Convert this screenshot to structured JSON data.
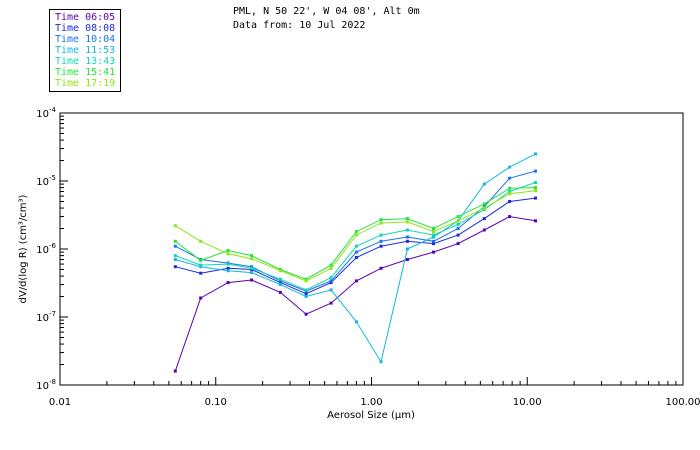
{
  "header": {
    "location": "PML, N 50 22', W 04 08', Alt 0m",
    "date": "Data from: 10 Jul 2022"
  },
  "legend": [
    {
      "label": "Time 06:05",
      "color": "#5a00b4"
    },
    {
      "label": "Time 08:08",
      "color": "#1a2ae0"
    },
    {
      "label": "Time 10:04",
      "color": "#1a74e8"
    },
    {
      "label": "Time 11:53",
      "color": "#10b8e0"
    },
    {
      "label": "Time 13:43",
      "color": "#10d8b0"
    },
    {
      "label": "Time 15:41",
      "color": "#22e63a"
    },
    {
      "label": "Time 17:19",
      "color": "#8ee614"
    }
  ],
  "chart_data": {
    "type": "line",
    "xscale": "log",
    "yscale": "log",
    "xlabel": "Aerosol Size (µm)",
    "ylabel": "dV/d(log R) (cm³/cm³)",
    "xlim": [
      0.01,
      100
    ],
    "ylim": [
      1e-08,
      0.0001
    ],
    "x_tick_labels": [
      "0.01",
      "0.10",
      "1.00",
      "10.00",
      "100.00"
    ],
    "y_tick_labels": [
      {
        "mant": "10",
        "exp": "-4"
      },
      {
        "mant": "10",
        "exp": "-5"
      },
      {
        "mant": "10",
        "exp": "-6"
      },
      {
        "mant": "10",
        "exp": "-7"
      },
      {
        "mant": "10",
        "exp": "-8"
      }
    ],
    "x": [
      0.055,
      0.08,
      0.12,
      0.17,
      0.26,
      0.38,
      0.55,
      0.8,
      1.15,
      1.7,
      2.5,
      3.6,
      5.3,
      7.7,
      11.3
    ],
    "series": [
      {
        "name": "06:05",
        "color": "#5a00b4",
        "values": [
          1.6e-08,
          1.9e-07,
          3.2e-07,
          3.5e-07,
          2.3e-07,
          1.1e-07,
          1.6e-07,
          3.4e-07,
          5.2e-07,
          7e-07,
          9e-07,
          1.2e-06,
          1.9e-06,
          3e-06,
          2.6e-06
        ]
      },
      {
        "name": "08:08",
        "color": "#1a2ae0",
        "values": [
          5.5e-07,
          4.4e-07,
          5.2e-07,
          5e-07,
          3.2e-07,
          2.2e-07,
          3.2e-07,
          7.5e-07,
          1.1e-06,
          1.3e-06,
          1.2e-06,
          1.6e-06,
          2.8e-06,
          5e-06,
          5.6e-06
        ]
      },
      {
        "name": "10:04",
        "color": "#1a74e8",
        "values": [
          1.1e-06,
          7e-07,
          6.2e-07,
          5.5e-07,
          3.4e-07,
          2.4e-07,
          3.4e-07,
          9e-07,
          1.3e-06,
          1.5e-06,
          1.3e-06,
          2e-06,
          4.2e-06,
          1.1e-05,
          1.4e-05
        ]
      },
      {
        "name": "11:53",
        "color": "#10b8e0",
        "values": [
          7e-07,
          5.5e-07,
          4.8e-07,
          4.5e-07,
          3e-07,
          2e-07,
          2.5e-07,
          8.5e-08,
          2.2e-08,
          1e-06,
          1.5e-06,
          2.6e-06,
          9e-06,
          1.6e-05,
          2.5e-05
        ]
      },
      {
        "name": "13:43",
        "color": "#10d8b0",
        "values": [
          8e-07,
          5.8e-07,
          6e-07,
          5.2e-07,
          3.6e-07,
          2.5e-07,
          3.8e-07,
          1.1e-06,
          1.6e-06,
          1.9e-06,
          1.6e-06,
          2.3e-06,
          3.8e-06,
          7e-06,
          9.5e-06
        ]
      },
      {
        "name": "15:41",
        "color": "#22e63a",
        "values": [
          1.3e-06,
          6.8e-07,
          9.5e-07,
          8e-07,
          5e-07,
          3.6e-07,
          5.8e-07,
          1.8e-06,
          2.7e-06,
          2.8e-06,
          2e-06,
          3e-06,
          4.6e-06,
          7.8e-06,
          8e-06
        ]
      },
      {
        "name": "17:19",
        "color": "#8ee614",
        "values": [
          2.2e-06,
          1.3e-06,
          8.5e-07,
          7.2e-07,
          4.8e-07,
          3.4e-07,
          5.2e-07,
          1.6e-06,
          2.4e-06,
          2.5e-06,
          1.8e-06,
          2.6e-06,
          4e-06,
          6.5e-06,
          7.2e-06
        ]
      }
    ]
  }
}
